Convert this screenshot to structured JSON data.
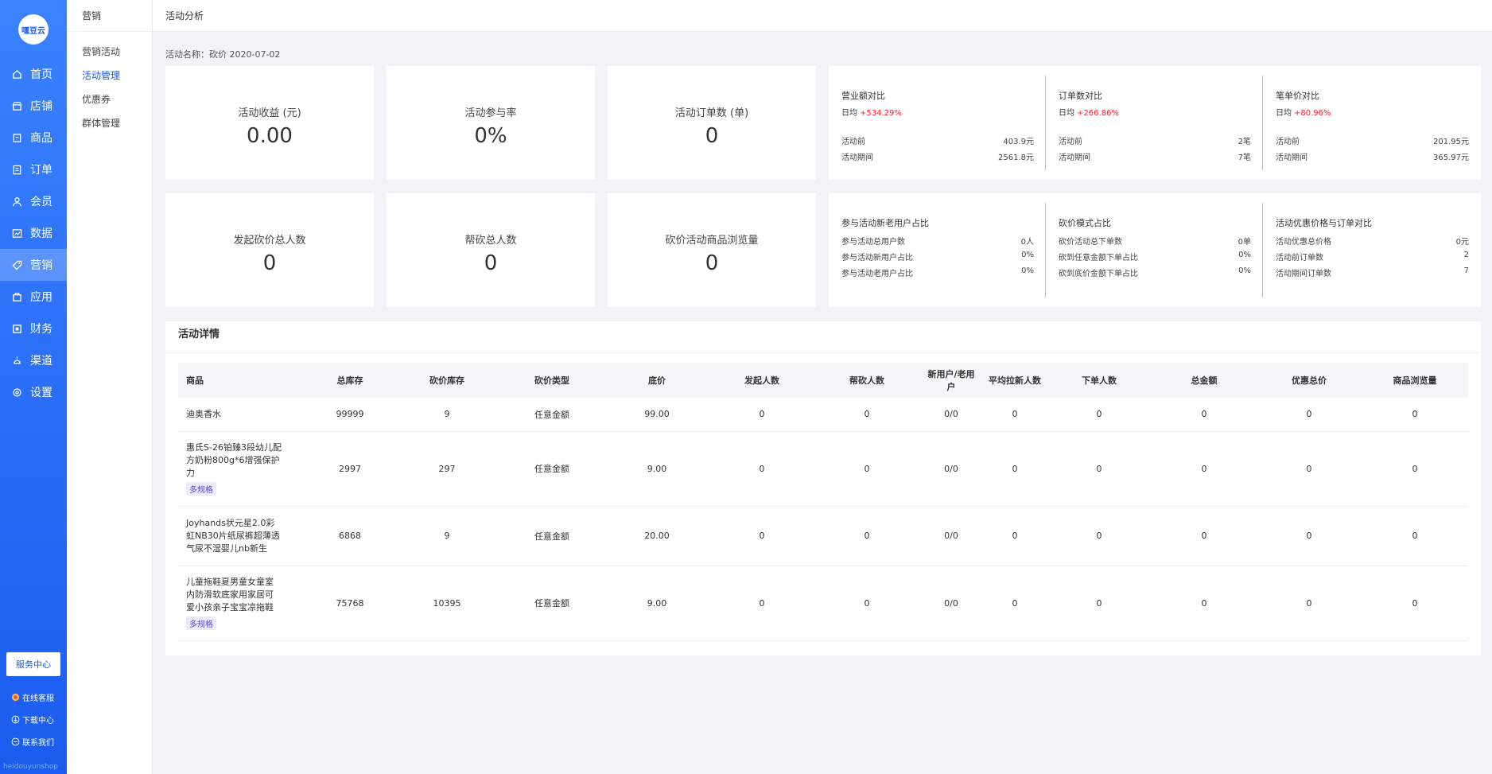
{
  "app": {
    "logo": "嘿豆云",
    "domain": "heidouyunshop"
  },
  "nav": [
    {
      "label": "首页",
      "icon": "home-icon"
    },
    {
      "label": "店铺",
      "icon": "store-icon"
    },
    {
      "label": "商品",
      "icon": "goods-icon"
    },
    {
      "label": "订单",
      "icon": "order-icon"
    },
    {
      "label": "会员",
      "icon": "member-icon"
    },
    {
      "label": "数据",
      "icon": "chart-icon"
    },
    {
      "label": "营销",
      "icon": "tag-icon"
    },
    {
      "label": "应用",
      "icon": "app-icon"
    },
    {
      "label": "财务",
      "icon": "finance-icon"
    },
    {
      "label": "渠道",
      "icon": "channel-icon"
    },
    {
      "label": "设置",
      "icon": "gear-icon"
    }
  ],
  "active_nav": "营销",
  "service": {
    "button": "服务中心",
    "links": [
      "在线客服",
      "下载中心",
      "联系我们"
    ]
  },
  "submenu": {
    "title": "营销",
    "items": [
      "营销活动",
      "活动管理",
      "优惠券",
      "群体管理"
    ],
    "active": "活动管理"
  },
  "header": {
    "crumb": "活动分析"
  },
  "activity_name": "活动名称：砍价 2020-07-02",
  "stats": [
    {
      "label": "活动收益 (元)",
      "value": "0.00"
    },
    {
      "label": "活动参与率",
      "value": "0%"
    },
    {
      "label": "活动订单数 (单)",
      "value": "0"
    },
    {
      "label": "发起砍价总人数",
      "value": "0"
    },
    {
      "label": "帮砍总人数",
      "value": "0"
    },
    {
      "label": "砍价活动商品浏览量",
      "value": "0"
    }
  ],
  "comparisons": [
    {
      "title": "营业额对比",
      "avg_label": "日均",
      "avg": "+534.29%",
      "rows": [
        [
          "活动前",
          "403.9元"
        ],
        [
          "活动期间",
          "2561.8元"
        ]
      ]
    },
    {
      "title": "订单数对比",
      "avg_label": "日均",
      "avg": "+266.86%",
      "rows": [
        [
          "活动前",
          "2笔"
        ],
        [
          "活动期间",
          "7笔"
        ]
      ]
    },
    {
      "title": "笔单价对比",
      "avg_label": "日均",
      "avg": "+80.96%",
      "rows": [
        [
          "活动前",
          "201.95元"
        ],
        [
          "活动期间",
          "365.97元"
        ]
      ]
    }
  ],
  "ratios": [
    {
      "title": "参与活动新老用户占比",
      "rows": [
        [
          "参与活动总用户数",
          "0人"
        ],
        [
          "参与活动新用户占比",
          "0%"
        ],
        [
          "参与活动老用户占比",
          "0%"
        ]
      ]
    },
    {
      "title": "砍价模式占比",
      "rows": [
        [
          "砍价活动总下单数",
          "0单"
        ],
        [
          "砍到任意金额下单占比",
          "0%"
        ],
        [
          "砍到底价金额下单占比",
          "0%"
        ]
      ]
    },
    {
      "title": "活动优惠价格与订单对比",
      "rows": [
        [
          "活动优惠总价格",
          "0元"
        ],
        [
          "活动前订单数",
          "2"
        ],
        [
          "活动期间订单数",
          "7"
        ]
      ]
    }
  ],
  "detail": {
    "title": "活动详情",
    "columns": [
      "商品",
      "总库存",
      "砍价库存",
      "砍价类型",
      "底价",
      "发起人数",
      "帮砍人数",
      "新用户/老用户",
      "平均拉新人数",
      "下单人数",
      "总金额",
      "优惠总价",
      "商品浏览量"
    ],
    "rows": [
      {
        "name": "迪奥香水",
        "tag": "",
        "cells": [
          "99999",
          "9",
          "任意金额",
          "99.00",
          "0",
          "0",
          "0/0",
          "0",
          "0",
          "0",
          "0",
          "0"
        ]
      },
      {
        "name": "惠氏S-26铂臻3段幼儿配方奶粉800g*6增强保护力",
        "tag": "多规格",
        "cells": [
          "2997",
          "297",
          "任意金额",
          "9.00",
          "0",
          "0",
          "0/0",
          "0",
          "0",
          "0",
          "0",
          "0"
        ]
      },
      {
        "name": "Joyhands状元星2.0彩虹NB30片纸尿裤超薄透气尿不湿婴儿nb新生",
        "tag": "",
        "cells": [
          "6868",
          "9",
          "任意金额",
          "20.00",
          "0",
          "0",
          "0/0",
          "0",
          "0",
          "0",
          "0",
          "0"
        ]
      },
      {
        "name": "儿童拖鞋夏男童女童室内防滑软底家用家居可爱小孩亲子宝宝凉拖鞋",
        "tag": "多规格",
        "cells": [
          "75768",
          "10395",
          "任意金额",
          "9.00",
          "0",
          "0",
          "0/0",
          "0",
          "0",
          "0",
          "0",
          "0"
        ]
      }
    ]
  }
}
